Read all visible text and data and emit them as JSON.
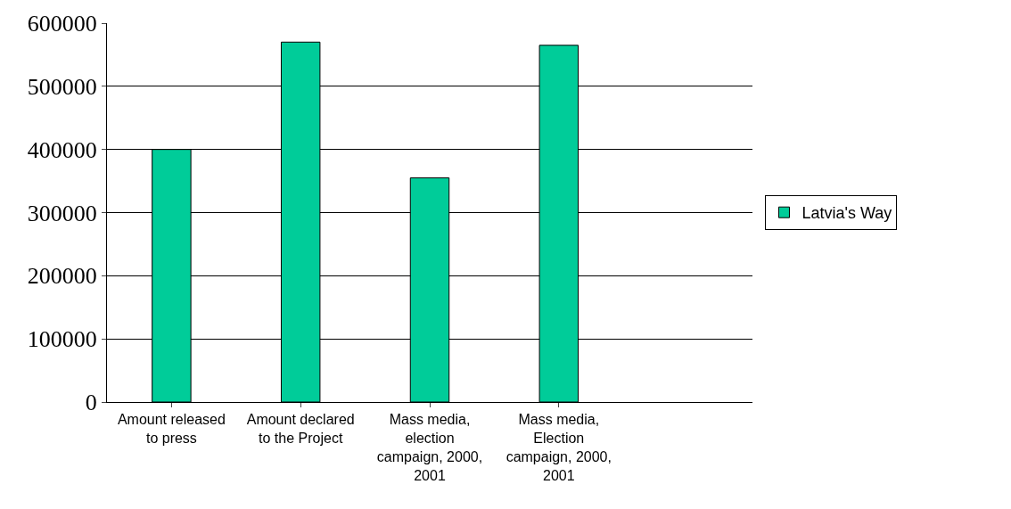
{
  "chart_data": {
    "type": "bar",
    "categories": [
      "Amount released to press",
      "Amount declared to the Project",
      "Mass media, election campaign, 2000, 2001",
      "Mass media, Election campaign, 2000, 2001",
      null
    ],
    "series": [
      {
        "name": "Latvia's Way",
        "color": "#00cc99",
        "values": [
          400000,
          570000,
          355000,
          565000,
          null
        ]
      }
    ],
    "ylim": [
      0,
      600000
    ],
    "yticks": [
      0,
      100000,
      200000,
      300000,
      400000,
      500000,
      600000
    ],
    "grid": "y",
    "legend": "right"
  }
}
